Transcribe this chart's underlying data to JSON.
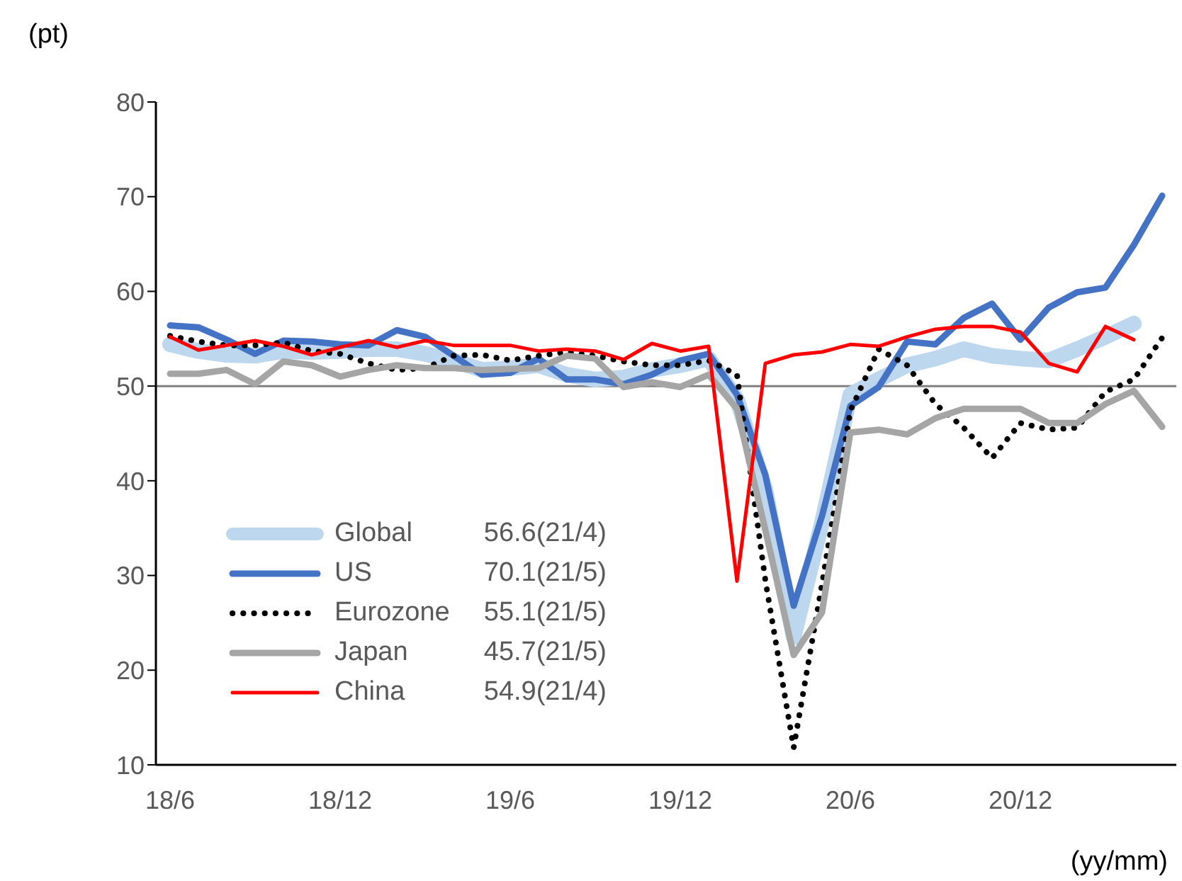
{
  "chart_data": {
    "type": "line",
    "ylabel": "(pt)",
    "xlabel": "(yy/mm)",
    "categories": [
      "18/6",
      null,
      null,
      null,
      null,
      null,
      "18/12",
      null,
      null,
      null,
      null,
      null,
      "19/6",
      null,
      null,
      null,
      null,
      null,
      "19/12",
      null,
      null,
      null,
      null,
      null,
      "20/6",
      null,
      null,
      null,
      null,
      null,
      "20/12",
      null,
      null,
      null,
      null,
      null
    ],
    "series": [
      {
        "name": "Global",
        "color": "#bdd7ee",
        "values": [
          54.4,
          53.7,
          53.3,
          53.2,
          53.7,
          53.6,
          53.7,
          53.9,
          53.9,
          53.4,
          52.7,
          51.7,
          51.9,
          52.2,
          51.2,
          50.7,
          50.9,
          51.7,
          52.2,
          52.9,
          48.6,
          39.1,
          23.5,
          35.6,
          49.1,
          50.7,
          52.2,
          52.9,
          53.9,
          53.2,
          52.9,
          52.7,
          53.9,
          55.2,
          56.6,
          null
        ]
      },
      {
        "name": "US",
        "color": "#4472c4",
        "values": [
          56.4,
          56.2,
          54.9,
          53.4,
          54.8,
          54.7,
          54.4,
          54.3,
          55.9,
          55.2,
          53.2,
          51.2,
          51.4,
          52.9,
          50.7,
          50.7,
          50.2,
          51.2,
          52.7,
          53.4,
          49.1,
          40.6,
          26.8,
          36.3,
          47.9,
          49.9,
          54.7,
          54.4,
          57.2,
          58.7,
          54.9,
          58.3,
          59.9,
          60.4,
          64.9,
          70.1
        ]
      },
      {
        "name": "Eurozone",
        "color": "#000000",
        "line_style": "dotted",
        "values": [
          55.3,
          54.7,
          54.3,
          54.3,
          54.6,
          53.7,
          53.4,
          52.4,
          51.7,
          51.9,
          53.2,
          53.3,
          52.7,
          53.2,
          53.6,
          53.2,
          52.6,
          52.2,
          52.2,
          52.7,
          51.2,
          29.5,
          11.8,
          29.1,
          47.4,
          53.9,
          52.2,
          48.1,
          45.6,
          42.4,
          46.1,
          45.4,
          45.6,
          49.4,
          50.7,
          55.1
        ]
      },
      {
        "name": "Japan",
        "color": "#a5a5a5",
        "values": [
          51.3,
          51.3,
          51.7,
          50.2,
          52.6,
          52.2,
          51.0,
          51.7,
          52.2,
          51.9,
          51.9,
          51.7,
          51.8,
          51.9,
          53.2,
          52.9,
          49.9,
          50.4,
          49.9,
          51.2,
          47.6,
          34.8,
          21.6,
          26.1,
          45.1,
          45.4,
          44.9,
          46.6,
          47.6,
          47.6,
          47.6,
          46.1,
          46.1,
          48.1,
          49.5,
          45.7
        ]
      },
      {
        "name": "China",
        "color": "#ff0000",
        "values": [
          55.2,
          53.8,
          54.3,
          54.8,
          54.2,
          53.3,
          54.1,
          54.8,
          54.1,
          54.8,
          54.3,
          54.3,
          54.3,
          53.7,
          53.9,
          53.7,
          52.8,
          54.5,
          53.7,
          54.2,
          29.4,
          52.4,
          53.3,
          53.6,
          54.4,
          54.2,
          55.2,
          56.0,
          56.3,
          56.3,
          55.7,
          52.4,
          51.5,
          56.3,
          54.9,
          null
        ]
      }
    ],
    "annotations": [
      "56.6(21/4)",
      "70.1(21/5)",
      "55.1(21/5)",
      "45.7(21/5)",
      "54.9(21/4)"
    ],
    "ylim": [
      10,
      80
    ],
    "yticks": [
      10,
      20,
      30,
      40,
      50,
      60,
      70,
      80
    ],
    "ref_lines": [
      {
        "axis": "y",
        "value": 50,
        "color": "#808080"
      }
    ],
    "grid": false,
    "legend": "bottom left",
    "line_style": "solid",
    "marker": "none"
  }
}
